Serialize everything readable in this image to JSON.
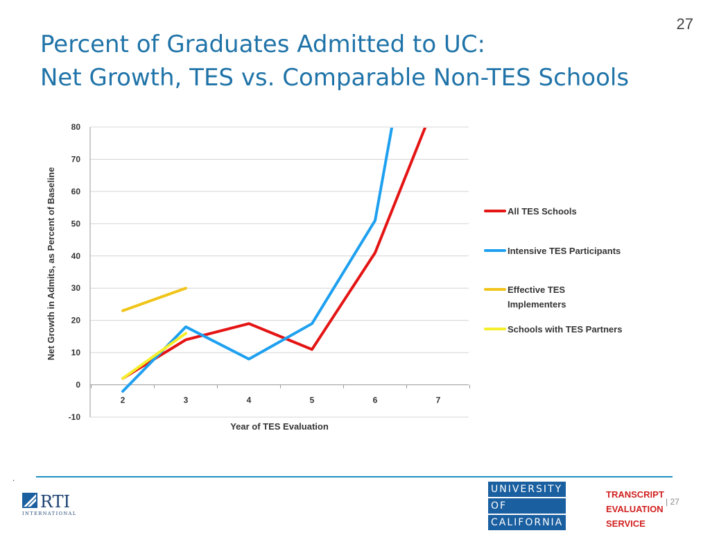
{
  "slide_number": "27",
  "title": {
    "line1": "Percent of Graduates Admitted to UC:",
    "line2": "Net Growth, TES vs. Comparable Non-TES Schools"
  },
  "chart_data": {
    "type": "line",
    "xlabel": "Year of TES Evaluation",
    "ylabel": "Net Growth in Admits, as Percent of Baseline",
    "x_categories": [
      "2",
      "3",
      "4",
      "5",
      "6",
      "7"
    ],
    "ylim": [
      -10,
      80
    ],
    "y_ticks": [
      "-10",
      "0",
      "10",
      "20",
      "30",
      "40",
      "50",
      "60",
      "70",
      "80"
    ],
    "grid": true,
    "legend_position": "right",
    "series": [
      {
        "name": "All TES Schools",
        "color": "#e41414",
        "points": [
          [
            2,
            2
          ],
          [
            3,
            14
          ],
          [
            4,
            19
          ],
          [
            5,
            11
          ],
          [
            6,
            41
          ],
          [
            7,
            90
          ]
        ]
      },
      {
        "name": "Intensive TES Participants",
        "color": "#1ea0f0",
        "points": [
          [
            2,
            -2
          ],
          [
            3,
            18
          ],
          [
            4,
            8
          ],
          [
            5,
            19
          ],
          [
            6,
            51
          ],
          [
            7,
            160
          ]
        ]
      },
      {
        "name": "Effective TES Implementers",
        "color": "#f0c419",
        "points": [
          [
            2,
            23
          ],
          [
            3,
            30
          ]
        ]
      },
      {
        "name": "Schools with TES Partners",
        "color": "#f5ee2a",
        "points": [
          [
            2,
            2
          ],
          [
            3,
            16
          ]
        ]
      }
    ]
  },
  "footer": {
    "marker": ".",
    "rti_text": "RTI",
    "rti_subtext": "INTERNATIONAL",
    "uc_line1": "UNIVERSITY",
    "uc_line2": "OF",
    "uc_line3": "CALIFORNIA",
    "tes_line1": "TRANSCRIPT",
    "tes_line2": "EVALUATION",
    "tes_line3": "SERVICE",
    "page_number": "| 27"
  }
}
